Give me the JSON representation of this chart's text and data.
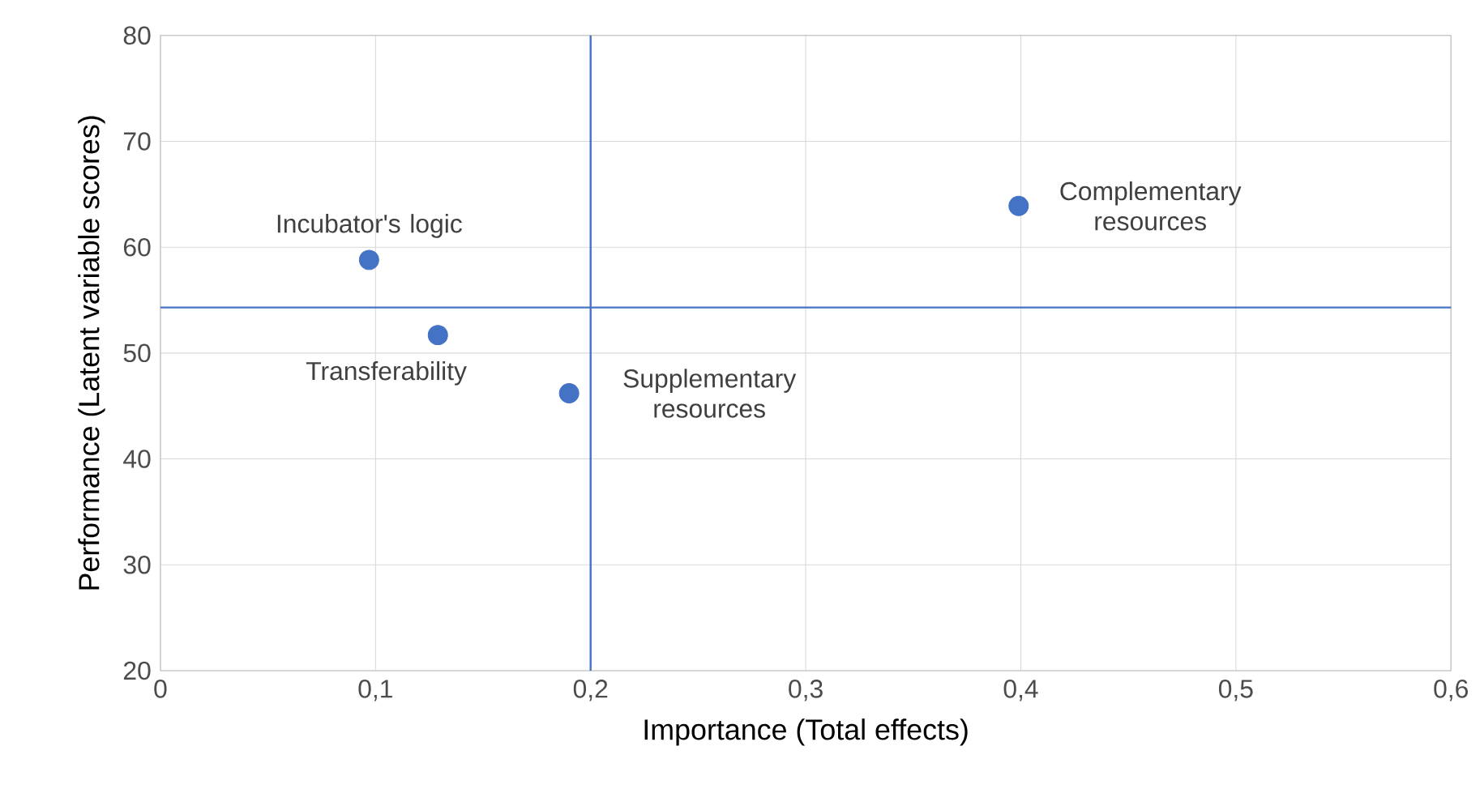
{
  "chart_data": {
    "type": "scatter",
    "xlabel": "Importance (Total effects)",
    "ylabel": "Performance (Latent variable scores)",
    "x": [
      0.097,
      0.129,
      0.19,
      0.399
    ],
    "values": [
      58.8,
      51.7,
      46.2,
      63.9
    ],
    "color": "#4472c4",
    "grid": true,
    "xlim": [
      0,
      0.6
    ],
    "ylim": [
      20,
      80
    ],
    "xticks": [
      0,
      {
        "value": 0.1,
        "label": "0,1"
      },
      {
        "value": 0.2,
        "label": "0,2"
      },
      {
        "value": 0.3,
        "label": "0,3"
      },
      {
        "value": 0.4,
        "label": "0,4"
      },
      {
        "value": 0.5,
        "label": "0,5"
      },
      {
        "value": 0.6,
        "label": "0,6"
      }
    ],
    "yticks": [
      20,
      30,
      40,
      50,
      60,
      70,
      80
    ],
    "ref_lines": [
      {
        "axis": "x",
        "value": 0.2,
        "color": "#4472c4"
      },
      {
        "axis": "y",
        "value": 54.3,
        "color": "#4472c4"
      }
    ],
    "annotations": [
      {
        "text": "Incubator's logic",
        "x": 0.097,
        "y": 58.8
      },
      {
        "text": "Transferability",
        "x": 0.129,
        "y": 51.7
      },
      {
        "text": "Supplementary resources",
        "x": 0.19,
        "y": 46.2
      },
      {
        "text": "Complementary resources",
        "x": 0.399,
        "y": 63.9
      }
    ]
  }
}
